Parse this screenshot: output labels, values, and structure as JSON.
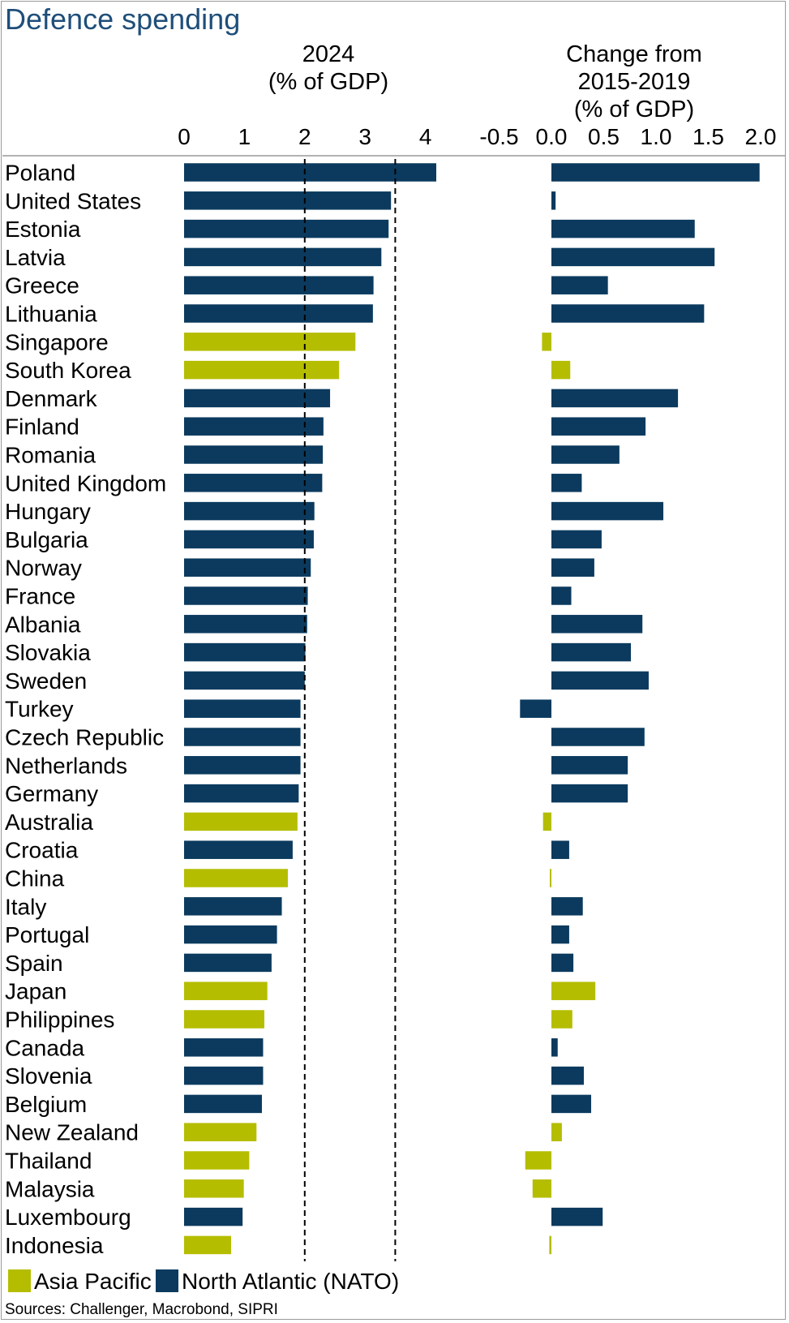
{
  "chart_data": {
    "type": "bar",
    "orientation": "horizontal",
    "title": "Defence spending",
    "categories": [
      "Poland",
      "United States",
      "Estonia",
      "Latvia",
      "Greece",
      "Lithuania",
      "Singapore",
      "South Korea",
      "Denmark",
      "Finland",
      "Romania",
      "United Kingdom",
      "Hungary",
      "Bulgaria",
      "Norway",
      "France",
      "Albania",
      "Slovakia",
      "Sweden",
      "Turkey",
      "Czech Republic",
      "Netherlands",
      "Germany",
      "Australia",
      "Croatia",
      "China",
      "Italy",
      "Portugal",
      "Spain",
      "Japan",
      "Philippines",
      "Canada",
      "Slovenia",
      "Belgium",
      "New Zealand",
      "Thailand",
      "Malaysia",
      "Luxembourg",
      "Indonesia"
    ],
    "region": [
      "N",
      "N",
      "N",
      "N",
      "N",
      "N",
      "A",
      "A",
      "N",
      "N",
      "N",
      "N",
      "N",
      "N",
      "N",
      "N",
      "N",
      "N",
      "N",
      "N",
      "N",
      "N",
      "N",
      "A",
      "N",
      "A",
      "N",
      "N",
      "N",
      "A",
      "A",
      "N",
      "N",
      "N",
      "A",
      "A",
      "A",
      "N",
      "A"
    ],
    "legend": {
      "placement": "bottom-left",
      "items": [
        {
          "key": "A",
          "label": "Asia Pacific",
          "color": "#b5bd00"
        },
        {
          "key": "N",
          "label": "North Atlantic (NATO)",
          "color": "#0b3a5e"
        }
      ]
    },
    "panels": [
      {
        "title_lines": [
          "2024",
          "(% of GDP)"
        ],
        "xlim": [
          0,
          4.5
        ],
        "ticks": [
          0,
          1,
          2,
          3,
          4
        ],
        "tick_labels": [
          "0",
          "1",
          "2",
          "3",
          "4"
        ],
        "reference_lines": [
          2,
          3.5
        ],
        "values": [
          4.18,
          3.43,
          3.39,
          3.27,
          3.14,
          3.13,
          2.84,
          2.57,
          2.42,
          2.31,
          2.3,
          2.29,
          2.16,
          2.15,
          2.1,
          2.05,
          2.04,
          2.01,
          2.0,
          1.93,
          1.93,
          1.93,
          1.9,
          1.88,
          1.8,
          1.72,
          1.62,
          1.54,
          1.45,
          1.38,
          1.33,
          1.31,
          1.31,
          1.29,
          1.2,
          1.08,
          0.99,
          0.97,
          0.78
        ]
      },
      {
        "title_lines": [
          "Change from",
          "2015-2019",
          "(% of GDP)"
        ],
        "xlim": [
          -0.6,
          2.1
        ],
        "ticks": [
          -0.5,
          0,
          0.5,
          1,
          1.5,
          2
        ],
        "tick_labels": [
          "-0.5",
          "0.0",
          "0.5",
          "1.0",
          "1.5",
          "2.0"
        ],
        "values": [
          1.99,
          0.04,
          1.37,
          1.56,
          0.54,
          1.46,
          -0.09,
          0.18,
          1.21,
          0.9,
          0.65,
          0.29,
          1.07,
          0.48,
          0.41,
          0.19,
          0.87,
          0.76,
          0.93,
          -0.3,
          0.89,
          0.73,
          0.73,
          -0.08,
          0.17,
          -0.01,
          0.3,
          0.17,
          0.21,
          0.42,
          0.2,
          0.06,
          0.31,
          0.38,
          0.1,
          -0.25,
          -0.18,
          0.49,
          -0.02
        ]
      }
    ]
  },
  "source": "Sources: Challenger, Macrobond, SIPRI"
}
